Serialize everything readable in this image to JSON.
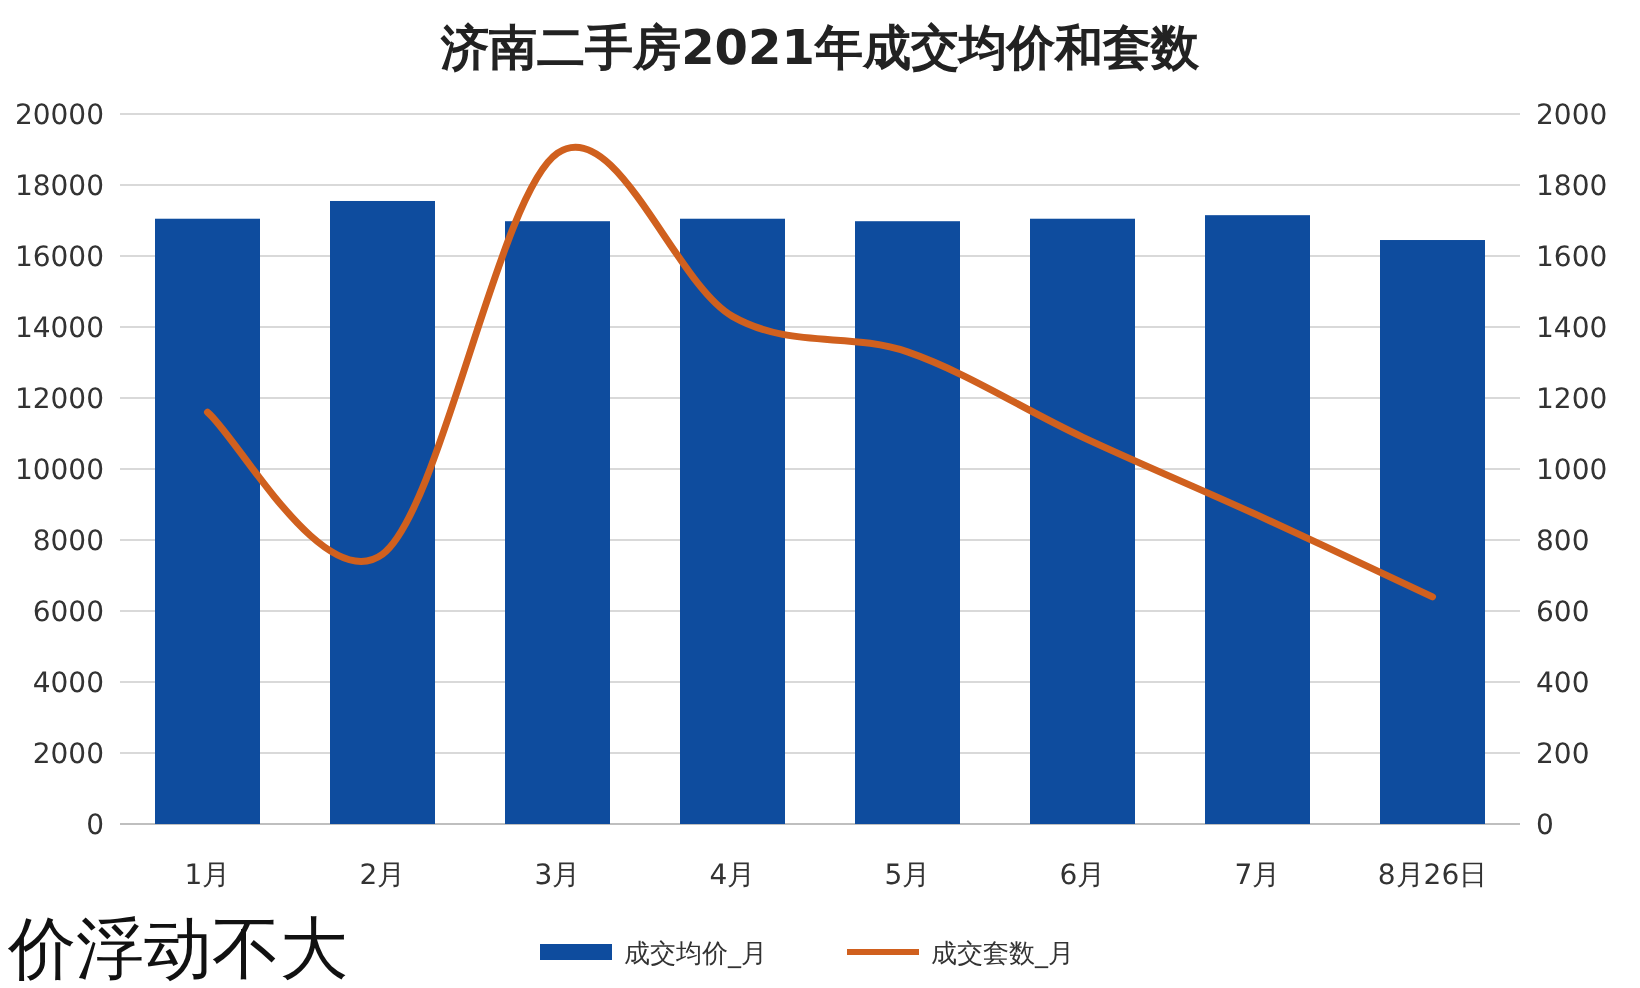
{
  "chart_data": {
    "type": "bar",
    "title": "济南二手房2021年成交均价和套数",
    "categories": [
      "1月",
      "2月",
      "3月",
      "4月",
      "5月",
      "6月",
      "7月",
      "8月26日"
    ],
    "series": [
      {
        "name": "成交均价_月",
        "color": "#0e4c9e",
        "values": [
          17050,
          17550,
          16980,
          17050,
          16980,
          17050,
          17150,
          16450
        ]
      },
      {
        "name": "成交套数_月",
        "type": "line",
        "axis": "y2",
        "color": "#d0601e",
        "values": [
          1160,
          760,
          1890,
          1430,
          1330,
          1090,
          870,
          640
        ]
      }
    ],
    "ylim": [
      0,
      20000
    ],
    "yticks": [
      0,
      2000,
      4000,
      6000,
      8000,
      10000,
      12000,
      14000,
      16000,
      18000,
      20000
    ],
    "y2lim": [
      0,
      2000
    ],
    "y2ticks": [
      0,
      200,
      400,
      600,
      800,
      1000,
      1200,
      1400,
      1600,
      1800,
      2000
    ],
    "grid": "y",
    "legend": "bottom",
    "marker": "none",
    "line_style": "solid",
    "annotations": [
      "价浮动不大"
    ]
  }
}
